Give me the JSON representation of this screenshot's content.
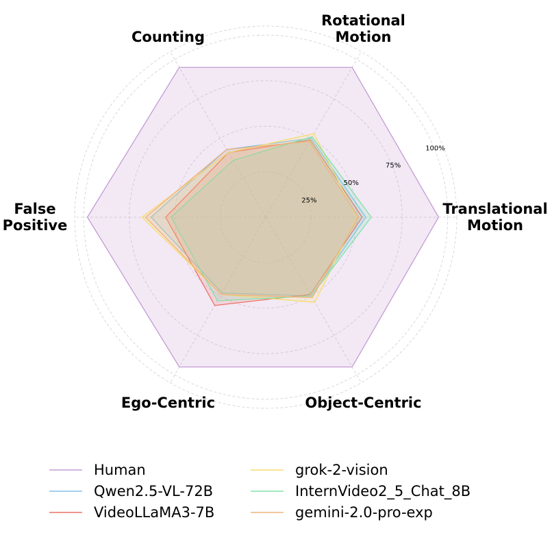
{
  "chart_data": {
    "type": "radar",
    "axes": [
      {
        "label": [
          "Translational",
          "Motion"
        ],
        "angle_deg": 0
      },
      {
        "label": [
          "Rotational",
          "Motion"
        ],
        "angle_deg": 60
      },
      {
        "label": [
          "Counting"
        ],
        "angle_deg": 120
      },
      {
        "label": [
          "False",
          "Positive"
        ],
        "angle_deg": 180
      },
      {
        "label": [
          "Ego-Centric"
        ],
        "angle_deg": 240
      },
      {
        "label": [
          "Object-Centric"
        ],
        "angle_deg": 300
      }
    ],
    "rlim": [
      0,
      105
    ],
    "radial_ticks": [
      {
        "value": 25,
        "label": "25%"
      },
      {
        "value": 50,
        "label": "50%"
      },
      {
        "value": 75,
        "label": "75%"
      },
      {
        "value": 100,
        "label": "100%"
      }
    ],
    "grid": true,
    "series": [
      {
        "name": "Human",
        "color": "#c39bd3",
        "fill_opacity": 0.22,
        "values": [
          95,
          95,
          95,
          98,
          95,
          95
        ]
      },
      {
        "name": "Qwen2.5-VL-72B",
        "color": "#85c1e9",
        "fill_opacity": 0.18,
        "values": [
          55,
          50,
          43,
          63,
          48,
          50
        ]
      },
      {
        "name": "VideoLLaMA3-7B",
        "color": "#ec7063",
        "fill_opacity": 0.18,
        "values": [
          53,
          49,
          41,
          55,
          56,
          49
        ]
      },
      {
        "name": "grok-2-vision",
        "color": "#f7dc6f",
        "fill_opacity": 0.18,
        "values": [
          50,
          53,
          41,
          68,
          49,
          54
        ]
      },
      {
        "name": "InternVideo2_5_Chat_8B",
        "color": "#82e0aa",
        "fill_opacity": 0.18,
        "values": [
          58,
          51,
          36,
          52,
          53,
          50
        ]
      },
      {
        "name": "gemini-2.0-pro-exp",
        "color": "#f0b27a",
        "fill_opacity": 0.18,
        "values": [
          51,
          48,
          43,
          66,
          49,
          51
        ]
      }
    ],
    "legend": {
      "placement": "bottom",
      "columns": 2
    }
  }
}
